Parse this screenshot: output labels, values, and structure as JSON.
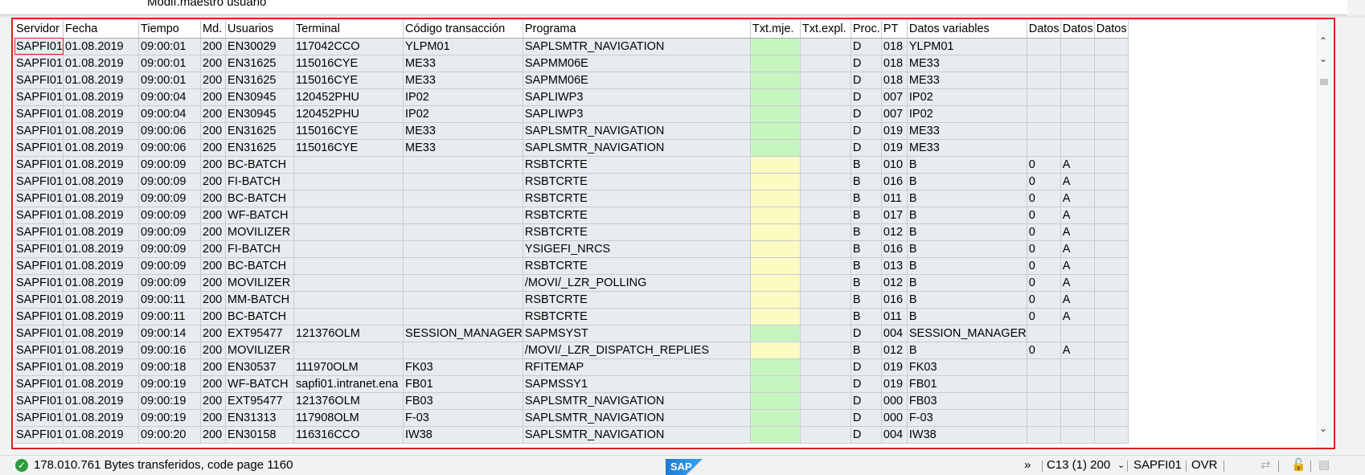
{
  "top": {
    "text": "Modif.maestro usuario"
  },
  "grid": {
    "columns": [
      "Servidor",
      "Fecha",
      "Tiempo",
      "Md.",
      "Usuarios",
      "Terminal",
      "Código transacción",
      "Programa",
      "Txt.mje.",
      "Txt.expl.",
      "Proc.",
      "PT",
      "Datos variables",
      "Datos",
      "Datos",
      "Datos"
    ],
    "rows": [
      [
        "SAPFI01",
        "01.08.2019",
        "09:00:01",
        "200",
        "EN30029",
        "117042CCO",
        "YLPM01",
        "SAPLSMTR_NAVIGATION",
        "",
        "",
        "D",
        "018",
        "YLPM01",
        "",
        "",
        ""
      ],
      [
        "SAPFI01",
        "01.08.2019",
        "09:00:01",
        "200",
        "EN31625",
        "115016CYE",
        "ME33",
        "SAPMM06E",
        "",
        "",
        "D",
        "018",
        "ME33",
        "",
        "",
        ""
      ],
      [
        "SAPFI01",
        "01.08.2019",
        "09:00:01",
        "200",
        "EN31625",
        "115016CYE",
        "ME33",
        "SAPMM06E",
        "",
        "",
        "D",
        "018",
        "ME33",
        "",
        "",
        ""
      ],
      [
        "SAPFI01",
        "01.08.2019",
        "09:00:04",
        "200",
        "EN30945",
        "120452PHU",
        "IP02",
        "SAPLIWP3",
        "",
        "",
        "D",
        "007",
        "IP02",
        "",
        "",
        ""
      ],
      [
        "SAPFI01",
        "01.08.2019",
        "09:00:04",
        "200",
        "EN30945",
        "120452PHU",
        "IP02",
        "SAPLIWP3",
        "",
        "",
        "D",
        "007",
        "IP02",
        "",
        "",
        ""
      ],
      [
        "SAPFI01",
        "01.08.2019",
        "09:00:06",
        "200",
        "EN31625",
        "115016CYE",
        "ME33",
        "SAPLSMTR_NAVIGATION",
        "",
        "",
        "D",
        "019",
        "ME33",
        "",
        "",
        ""
      ],
      [
        "SAPFI01",
        "01.08.2019",
        "09:00:06",
        "200",
        "EN31625",
        "115016CYE",
        "ME33",
        "SAPLSMTR_NAVIGATION",
        "",
        "",
        "D",
        "019",
        "ME33",
        "",
        "",
        ""
      ],
      [
        "SAPFI01",
        "01.08.2019",
        "09:00:09",
        "200",
        "BC-BATCH",
        "",
        "",
        "RSBTCRTE",
        "",
        "",
        "B",
        "010",
        "B",
        "0",
        "A",
        ""
      ],
      [
        "SAPFI01",
        "01.08.2019",
        "09:00:09",
        "200",
        "FI-BATCH",
        "",
        "",
        "RSBTCRTE",
        "",
        "",
        "B",
        "016",
        "B",
        "0",
        "A",
        ""
      ],
      [
        "SAPFI01",
        "01.08.2019",
        "09:00:09",
        "200",
        "BC-BATCH",
        "",
        "",
        "RSBTCRTE",
        "",
        "",
        "B",
        "011",
        "B",
        "0",
        "A",
        ""
      ],
      [
        "SAPFI01",
        "01.08.2019",
        "09:00:09",
        "200",
        "WF-BATCH",
        "",
        "",
        "RSBTCRTE",
        "",
        "",
        "B",
        "017",
        "B",
        "0",
        "A",
        ""
      ],
      [
        "SAPFI01",
        "01.08.2019",
        "09:00:09",
        "200",
        "MOVILIZER",
        "",
        "",
        "RSBTCRTE",
        "",
        "",
        "B",
        "012",
        "B",
        "0",
        "A",
        ""
      ],
      [
        "SAPFI01",
        "01.08.2019",
        "09:00:09",
        "200",
        "FI-BATCH",
        "",
        "",
        "YSIGEFI_NRCS",
        "",
        "",
        "B",
        "016",
        "B",
        "0",
        "A",
        ""
      ],
      [
        "SAPFI01",
        "01.08.2019",
        "09:00:09",
        "200",
        "BC-BATCH",
        "",
        "",
        "RSBTCRTE",
        "",
        "",
        "B",
        "013",
        "B",
        "0",
        "A",
        ""
      ],
      [
        "SAPFI01",
        "01.08.2019",
        "09:00:09",
        "200",
        "MOVILIZER",
        "",
        "",
        "/MOVI/_LZR_POLLING",
        "",
        "",
        "B",
        "012",
        "B",
        "0",
        "A",
        ""
      ],
      [
        "SAPFI01",
        "01.08.2019",
        "09:00:11",
        "200",
        "MM-BATCH",
        "",
        "",
        "RSBTCRTE",
        "",
        "",
        "B",
        "016",
        "B",
        "0",
        "A",
        ""
      ],
      [
        "SAPFI01",
        "01.08.2019",
        "09:00:11",
        "200",
        "BC-BATCH",
        "",
        "",
        "RSBTCRTE",
        "",
        "",
        "B",
        "011",
        "B",
        "0",
        "A",
        ""
      ],
      [
        "SAPFI01",
        "01.08.2019",
        "09:00:14",
        "200",
        "EXT95477",
        "121376OLM",
        "SESSION_MANAGER",
        "SAPMSYST",
        "",
        "",
        "D",
        "004",
        "SESSION_MANAGER",
        "",
        "",
        ""
      ],
      [
        "SAPFI01",
        "01.08.2019",
        "09:00:16",
        "200",
        "MOVILIZER",
        "",
        "",
        "/MOVI/_LZR_DISPATCH_REPLIES",
        "",
        "",
        "B",
        "012",
        "B",
        "0",
        "A",
        ""
      ],
      [
        "SAPFI01",
        "01.08.2019",
        "09:00:18",
        "200",
        "EN30537",
        "111970OLM",
        "FK03",
        "RFITEMAP",
        "",
        "",
        "D",
        "019",
        "FK03",
        "",
        "",
        ""
      ],
      [
        "SAPFI01",
        "01.08.2019",
        "09:00:19",
        "200",
        "WF-BATCH",
        "sapfi01.intranet.ena",
        "FB01",
        "SAPMSSY1",
        "",
        "",
        "D",
        "019",
        "FB01",
        "",
        "",
        ""
      ],
      [
        "SAPFI01",
        "01.08.2019",
        "09:00:19",
        "200",
        "EXT95477",
        "121376OLM",
        "FB03",
        "SAPLSMTR_NAVIGATION",
        "",
        "",
        "D",
        "000",
        "FB03",
        "",
        "",
        ""
      ],
      [
        "SAPFI01",
        "01.08.2019",
        "09:00:19",
        "200",
        "EN31313",
        "117908OLM",
        "F-03",
        "SAPLSMTR_NAVIGATION",
        "",
        "",
        "D",
        "000",
        "F-03",
        "",
        "",
        ""
      ],
      [
        "SAPFI01",
        "01.08.2019",
        "09:00:20",
        "200",
        "EN30158",
        "116316CCO",
        "IW38",
        "SAPLSMTR_NAVIGATION",
        "",
        "",
        "D",
        "004",
        "IW38",
        "",
        "",
        ""
      ]
    ],
    "colors": {
      "dialog": "#c6f5c0",
      "batch": "#fbfbc2"
    }
  },
  "status": {
    "message": "178.010.761 Bytes transferidos, code page 1160",
    "logo_text": "SAP",
    "more": "»",
    "session": "C13 (1) 200",
    "server": "SAPFI01",
    "mode": "OVR"
  }
}
